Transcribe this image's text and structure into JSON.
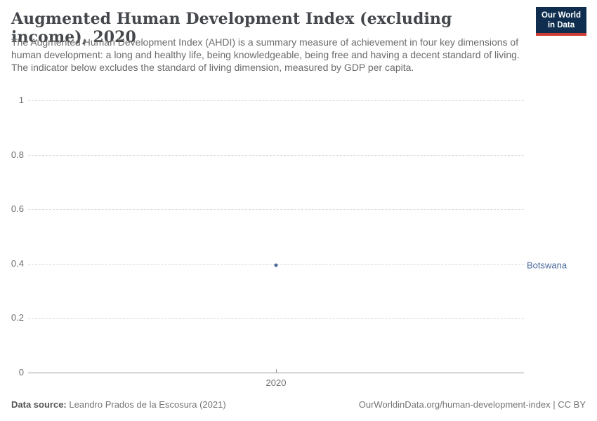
{
  "header": {
    "title": "Augmented Human Development Index (excluding income), 2020",
    "subtitle": "The Augmented Human Development Index (AHDI) is a summary measure of achievement in four key dimensions of human development: a long and healthy life, being knowledgeable, being free and having a decent standard of living. The indicator below excludes the standard of living dimension, measured by GDP per capita."
  },
  "logo": {
    "line1": "Our World",
    "line2": "in Data",
    "bg_color": "#0f2e4f",
    "accent_color": "#cc3b33"
  },
  "chart_data": {
    "type": "scatter",
    "title": "Augmented Human Development Index (excluding income), 2020",
    "x": [
      2020
    ],
    "xtick_labels": [
      "2020"
    ],
    "series": [
      {
        "name": "Botswana",
        "values": [
          0.395
        ],
        "color": "#4c6a9c"
      }
    ],
    "xlabel": "",
    "ylabel": "",
    "ylim": [
      0,
      1
    ],
    "yticks": [
      0,
      0.2,
      0.4,
      0.6,
      0.8,
      1
    ],
    "ytick_labels": [
      "0",
      "0.2",
      "0.4",
      "0.6",
      "0.8",
      "1"
    ],
    "grid": "dashed-horizontal",
    "legend": "entity-label-right",
    "grid_color": "#d9d9d9",
    "axis_color": "#999999"
  },
  "footer": {
    "source_label": "Data source:",
    "source_value": "Leandro Prados de la Escosura (2021)",
    "right_url": "OurWorldinData.org/human-development-index",
    "separator": " | ",
    "right_license": "CC BY"
  }
}
